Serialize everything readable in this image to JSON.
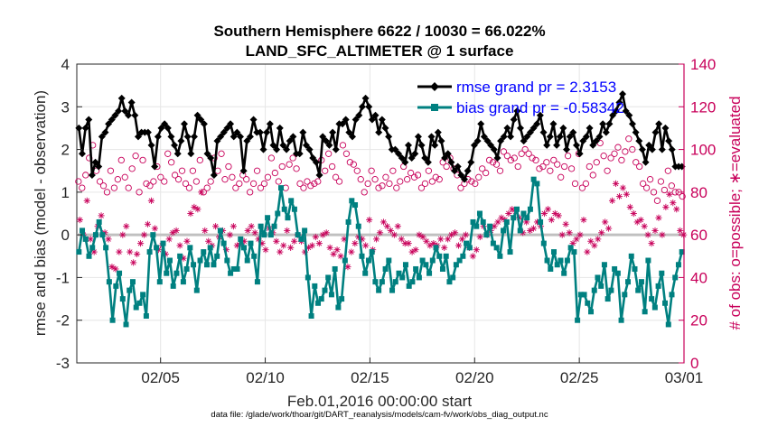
{
  "chart_data": {
    "type": "line",
    "title": "Southern Hemisphere 6622 / 10030 = 66.022%",
    "subtitle": "LAND_SFC_ALTIMETER @ 1 surface",
    "xlabel": "Feb.01,2016 00:00:00 start",
    "ylabel": "rmse and bias (model - observation)",
    "ylabel_right": "# of obs: o=possible; ∗=evaluated",
    "footnote": "data file: /glade/work/thoar/git/DART_reanalysis/models/cam-fv/work/obs_diag_output.nc",
    "x_range": [
      1,
      30
    ],
    "ylim": [
      -3,
      4
    ],
    "ylim_right": [
      0,
      140
    ],
    "x_ticks": [
      {
        "x": 5,
        "label": "02/05"
      },
      {
        "x": 10,
        "label": "02/10"
      },
      {
        "x": 15,
        "label": "02/15"
      },
      {
        "x": 20,
        "label": "02/20"
      },
      {
        "x": 25,
        "label": "02/25"
      },
      {
        "x": 30,
        "label": "03/01"
      }
    ],
    "y_ticks": [
      "4",
      "3",
      "2",
      "1",
      "0",
      "-1",
      "-2",
      "-3"
    ],
    "y_right_ticks": [
      "140",
      "120",
      "100",
      "80",
      "60",
      "40",
      "20",
      "0"
    ],
    "legend_position": "top-right",
    "grid": true,
    "colors": {
      "rmse": "#000000",
      "bias": "#008080",
      "obs": "#c8005a",
      "zero": "#c0c0c0",
      "grid": "#e6e6e6",
      "legend_text": "#0000ff"
    },
    "series": [
      {
        "name": "rmse grand pr = 2.3153",
        "axis": "left",
        "marker": "diamond",
        "values": [
          2.5,
          1.9,
          2.5,
          2.7,
          1.4,
          1.7,
          1.6,
          2.3,
          2.4,
          2.6,
          2.7,
          2.8,
          2.9,
          3.2,
          2.9,
          2.8,
          3.1,
          2.8,
          2.3,
          2.4,
          2.4,
          2.4,
          2.1,
          1.6,
          2.3,
          2.5,
          2.6,
          2.5,
          2.3,
          2.1,
          1.9,
          2.2,
          2.6,
          2.3,
          1.9,
          2.3,
          2.8,
          2.7,
          2.6,
          1.9,
          1.8,
          1.4,
          2.2,
          2.3,
          2.4,
          2.5,
          2.6,
          2.3,
          2.4,
          2.3,
          1.5,
          2.2,
          2.3,
          2.7,
          2.4,
          2.4,
          2.0,
          2.4,
          2.6,
          2.1,
          2.0,
          2.5,
          2.1,
          2.0,
          2.2,
          2.3,
          1.9,
          1.9,
          2.4,
          2.1,
          2.0,
          1.8,
          1.7,
          1.4,
          2.3,
          2.2,
          2.1,
          2.4,
          2.0,
          2.6,
          2.6,
          2.7,
          2.4,
          2.3,
          2.7,
          2.8,
          3.0,
          3.2,
          3.0,
          2.7,
          2.8,
          2.4,
          2.7,
          2.5,
          2.3,
          2.0,
          2.0,
          1.9,
          1.8,
          1.7,
          2.1,
          1.8,
          1.9,
          2.3,
          2.1,
          1.8,
          1.7,
          2.3,
          2.1,
          2.4,
          2.2,
          1.8,
          1.9,
          1.7,
          1.5,
          1.6,
          1.4,
          1.3,
          1.5,
          1.7,
          2.1,
          2.2,
          2.6,
          2.3,
          2.2,
          2.1,
          2.0,
          1.8,
          2.2,
          2.3,
          2.5,
          2.3,
          2.7,
          2.9,
          2.5,
          2.2,
          2.3,
          2.4,
          2.5,
          2.6,
          2.8,
          2.4,
          2.1,
          2.3,
          2.6,
          2.1,
          2.3,
          2.5,
          2.0,
          2.3,
          2.4,
          2.1,
          1.9,
          2.2,
          2.3,
          2.5,
          2.1,
          2.2,
          2.3,
          2.6,
          2.4,
          2.6,
          2.8,
          2.9,
          3.1,
          3.3,
          2.9,
          2.8,
          2.6,
          2.4,
          2.2,
          2.0,
          1.7,
          2.1,
          2.0,
          2.4,
          2.6,
          2.0,
          2.5,
          2.2,
          2.0,
          1.6,
          1.6,
          1.6
        ],
        "x_start": 1,
        "x_step": 0.16
      },
      {
        "name": "bias grand pr = -0.58342",
        "axis": "left",
        "marker": "square",
        "values": [
          -0.4,
          0.1,
          -0.1,
          -0.5,
          -0.3,
          0.0,
          0.3,
          0.0,
          -0.3,
          -1.1,
          -2.0,
          -1.2,
          -0.9,
          -1.5,
          -2.1,
          -1.3,
          -1.1,
          -1.7,
          -1.6,
          -1.4,
          -1.9,
          -0.4,
          0.0,
          -0.3,
          -1.1,
          -0.2,
          -0.9,
          -0.6,
          -1.2,
          -0.9,
          -0.5,
          -1.1,
          -0.8,
          -0.3,
          -0.7,
          -1.3,
          -0.6,
          -0.4,
          -0.7,
          -0.3,
          -0.7,
          -0.5,
          0.1,
          -0.2,
          -0.6,
          -0.9,
          -0.8,
          -0.8,
          -0.1,
          -0.3,
          -0.6,
          -0.2,
          -0.5,
          -1.1,
          0.2,
          0.0,
          0.4,
          0.0,
          0.2,
          0.5,
          1.1,
          0.6,
          0.4,
          0.8,
          0.6,
          0.0,
          -0.1,
          0.1,
          -1.0,
          -1.9,
          -1.2,
          -1.6,
          -1.5,
          -1.3,
          -1.0,
          -1.4,
          -0.8,
          -1.7,
          -1.5,
          -0.6,
          0.3,
          0.8,
          0.7,
          0.2,
          -0.5,
          -0.9,
          -0.6,
          -0.4,
          -1.1,
          -1.3,
          -1.1,
          -0.8,
          -0.6,
          -1.3,
          -1.1,
          -0.9,
          -1.0,
          -0.7,
          -1.2,
          -1.1,
          -0.8,
          -1.0,
          -0.6,
          -0.7,
          -0.9,
          -0.6,
          -0.3,
          -0.5,
          -0.8,
          -0.5,
          -1.1,
          -1.0,
          -0.7,
          -0.6,
          -0.5,
          -0.2,
          -0.3,
          0.3,
          0.2,
          0.5,
          0.3,
          0.0,
          0.2,
          -0.2,
          -0.3,
          -0.5,
          0.1,
          0.3,
          -0.4,
          0.4,
          0.6,
          0.1,
          0.5,
          0.4,
          0.6,
          1.3,
          1.2,
          0.3,
          -0.2,
          -0.6,
          -0.8,
          -0.4,
          -0.7,
          -0.6,
          -0.9,
          -0.6,
          -0.3,
          -0.4,
          -2.0,
          -1.4,
          -1.4,
          -1.6,
          -1.8,
          -1.3,
          -1.0,
          -1.2,
          -0.7,
          -1.5,
          -1.3,
          -0.8,
          -0.9,
          -2.0,
          -1.4,
          -1.1,
          -0.5,
          -0.8,
          -1.3,
          -1.1,
          -1.8,
          -0.6,
          -1.5,
          -1.7,
          -1.2,
          -0.9,
          -1.6,
          -2.1,
          -1.4,
          -1.0,
          -0.7,
          -0.4
        ],
        "x_start": 1,
        "x_step": 0.16
      },
      {
        "name": "possible",
        "axis": "right",
        "marker": "circle-open",
        "values": [
          85,
          82,
          88,
          96,
          102,
          90,
          85,
          83,
          80,
          90,
          82,
          86,
          95,
          87,
          82,
          91,
          97,
          80,
          95,
          84,
          83,
          85,
          92,
          87,
          85,
          98,
          94,
          88,
          86,
          90,
          84,
          82,
          90,
          85,
          95,
          80,
          82,
          85,
          96,
          90,
          98,
          86,
          92,
          87,
          82,
          84,
          88,
          86,
          80,
          84,
          90,
          82,
          84,
          87,
          96,
          89,
          85,
          92,
          82,
          93,
          96,
          91,
          84,
          82,
          85,
          83,
          84,
          85,
          95,
          90,
          98,
          92,
          87,
          85,
          102,
          98,
          94,
          93,
          90,
          86,
          80,
          84,
          90,
          86,
          82,
          83,
          87,
          84,
          90,
          82,
          85,
          92,
          86,
          89,
          87,
          88,
          82,
          84,
          90,
          85,
          87,
          86,
          94,
          92,
          96,
          91,
          88,
          82,
          84,
          86,
          85,
          84,
          87,
          91,
          89,
          95,
          94,
          93,
          90,
          99,
          97,
          95,
          96,
          92,
          98,
          100,
          98,
          96,
          95,
          91,
          92,
          94,
          90,
          95,
          93,
          87,
          92,
          97,
          91,
          84,
          98,
          82,
          84,
          92,
          88,
          94,
          103,
          97,
          90,
          96,
          98,
          101,
          95,
          99,
          105,
          100,
          94,
          92,
          84,
          82,
          86,
          80,
          76,
          85,
          81,
          90,
          83,
          80,
          80,
          78
        ]
      },
      {
        "name": "evaluated",
        "axis": "right",
        "marker": "asterisk",
        "values": [
          67,
          60,
          76,
          58,
          52,
          64,
          69,
          61,
          58,
          45,
          44,
          52,
          60,
          64,
          52,
          47,
          51,
          56,
          60,
          65,
          76,
          63,
          53,
          55,
          51,
          58,
          61,
          62,
          55,
          49,
          57,
          70,
          73,
          72,
          80,
          62,
          57,
          55,
          64,
          59,
          62,
          53,
          60,
          64,
          55,
          56,
          57,
          62,
          64,
          61,
          58,
          56,
          53,
          63,
          61,
          57,
          52,
          55,
          62,
          54,
          57,
          60,
          57,
          52,
          54,
          55,
          59,
          56,
          60,
          61,
          54,
          51,
          53,
          50,
          58,
          45,
          52,
          56,
          59,
          58,
          55,
          67,
          53,
          58,
          61,
          66,
          64,
          62,
          60,
          64,
          58,
          56,
          56,
          52,
          53,
          60,
          59,
          57,
          55,
          56,
          55,
          58,
          54,
          58,
          60,
          61,
          55,
          58,
          60,
          54,
          50,
          53,
          59,
          64,
          60,
          62,
          64,
          66,
          68,
          67,
          70,
          72,
          71,
          68,
          61,
          66,
          62,
          63,
          66,
          64,
          70,
          72,
          67,
          70,
          69,
          60,
          65,
          61,
          56,
          58,
          60,
          67,
          52,
          57,
          55,
          58,
          61,
          66,
          63,
          76,
          84,
          78,
          82,
          79,
          73,
          70,
          66,
          67,
          64,
          60,
          56,
          62,
          68,
          60,
          73,
          79,
          75,
          72,
          62,
          60
        ]
      }
    ]
  }
}
